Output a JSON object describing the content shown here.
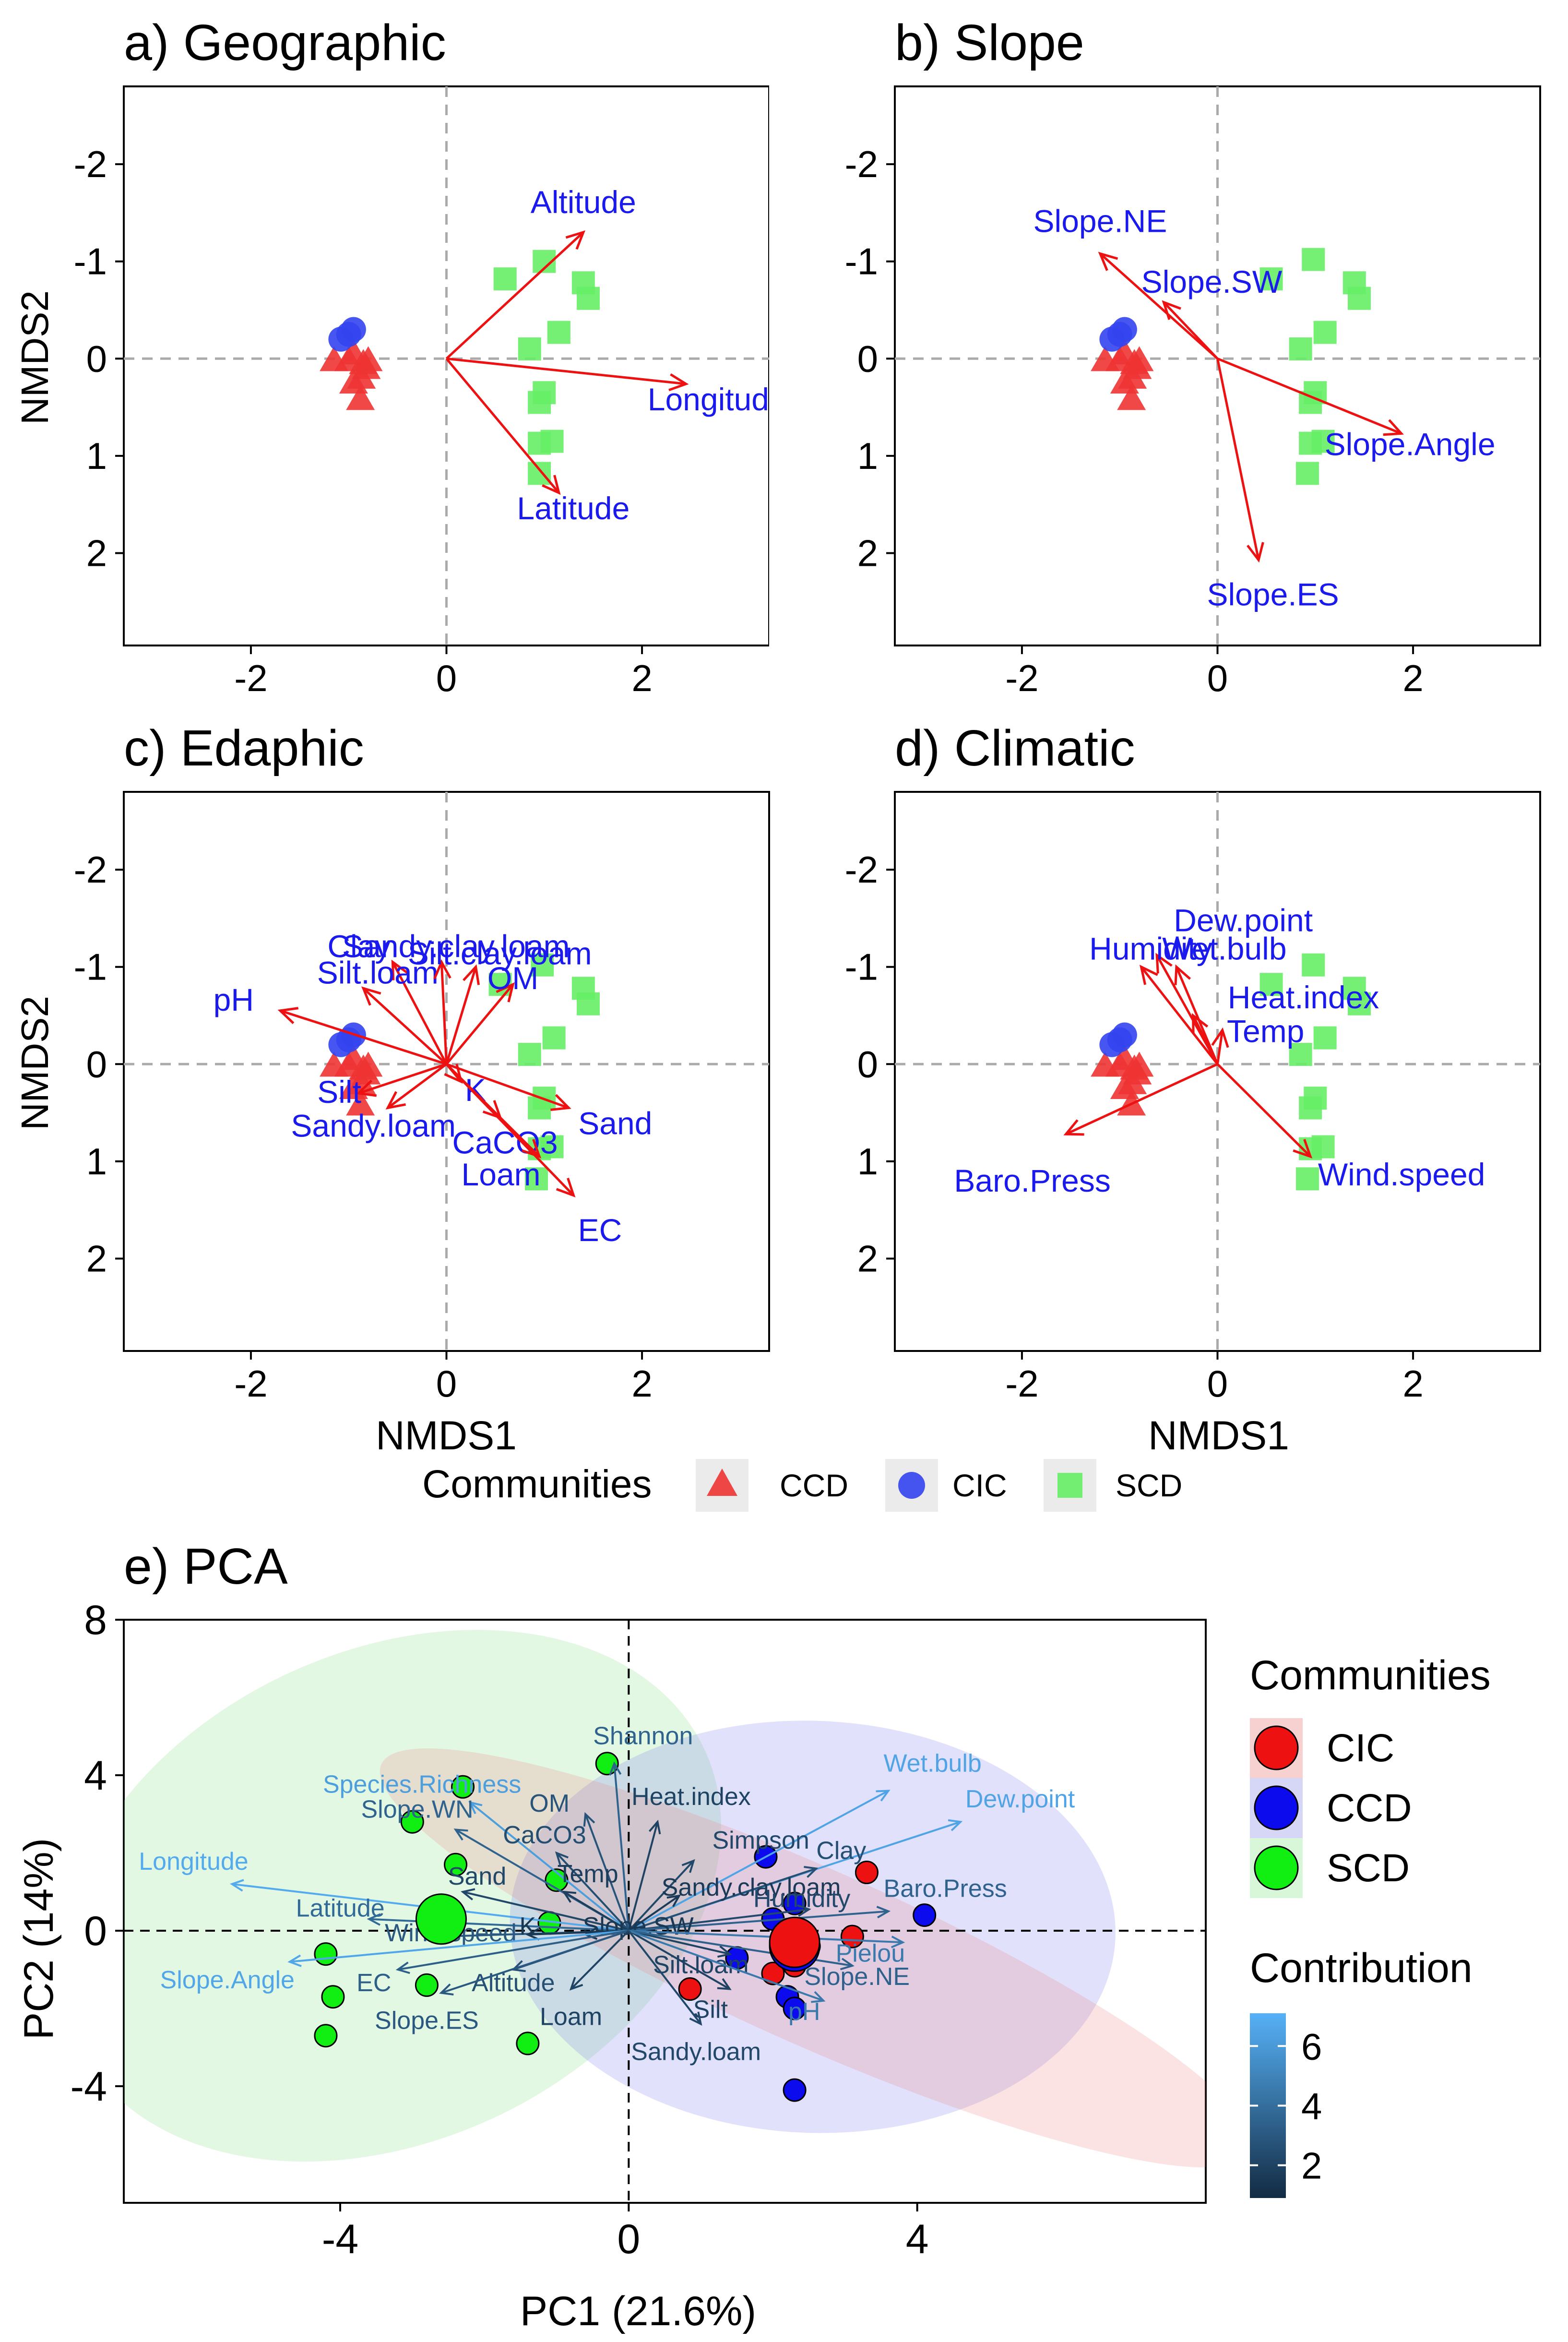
{
  "chart_data": [
    {
      "type": "scatter",
      "id": "a",
      "title": "a) Geographic",
      "xlabel": "",
      "ylabel": "NMDS2",
      "xlim": [
        -3.3,
        3.3
      ],
      "ylim": [
        -2.8,
        2.95
      ],
      "x_ticks": [
        -2,
        0,
        2
      ],
      "x_tick_labels": [
        "-2",
        "0",
        "2"
      ],
      "y_ticks": [
        -2,
        -1,
        0,
        1,
        2
      ],
      "y_tick_labels": [
        "-2",
        "-1",
        "0",
        "1",
        "2"
      ],
      "y_inverted": true,
      "points": {
        "CCD": [
          [
            -1.15,
            0.02
          ],
          [
            -1.0,
            0.02
          ],
          [
            -0.85,
            0.05
          ],
          [
            -0.8,
            0.02
          ],
          [
            -0.95,
            -0.05
          ],
          [
            -0.82,
            0.1
          ],
          [
            -0.87,
            0.2
          ],
          [
            -0.95,
            0.25
          ],
          [
            -0.88,
            0.42
          ]
        ],
        "CIC": [
          [
            -1.0,
            -0.25
          ],
          [
            -0.95,
            -0.3
          ],
          [
            -1.08,
            -0.2
          ]
        ],
        "SCD": [
          [
            0.6,
            -0.82
          ],
          [
            1.0,
            -1.0
          ],
          [
            1.4,
            -0.78
          ],
          [
            1.45,
            -0.62
          ],
          [
            1.15,
            -0.27
          ],
          [
            0.85,
            -0.1
          ],
          [
            1.0,
            0.35
          ],
          [
            0.95,
            0.45
          ],
          [
            0.95,
            0.87
          ],
          [
            1.08,
            0.85
          ],
          [
            0.95,
            1.18
          ]
        ]
      },
      "vectors": [
        {
          "label": "Altitude",
          "x": 1.4,
          "y": -1.3
        },
        {
          "label": "Longitude",
          "x": 2.45,
          "y": 0.26
        },
        {
          "label": "Latitude",
          "x": 1.15,
          "y": 1.38
        }
      ]
    },
    {
      "type": "scatter",
      "id": "b",
      "title": "b) Slope",
      "xlabel": "",
      "ylabel": "",
      "xlim": [
        -3.3,
        3.3
      ],
      "ylim": [
        -2.8,
        2.95
      ],
      "x_ticks": [
        -2,
        0,
        2
      ],
      "x_tick_labels": [
        "-2",
        "0",
        "2"
      ],
      "y_ticks": [
        -2,
        -1,
        0,
        1,
        2
      ],
      "y_tick_labels": [
        "-2",
        "-1",
        "0",
        "1",
        "2"
      ],
      "y_inverted": true,
      "points": {
        "CCD": [
          [
            -1.15,
            0.02
          ],
          [
            -1.0,
            0.02
          ],
          [
            -0.85,
            0.05
          ],
          [
            -0.8,
            0.02
          ],
          [
            -0.95,
            -0.05
          ],
          [
            -0.82,
            0.1
          ],
          [
            -0.87,
            0.2
          ],
          [
            -0.95,
            0.25
          ],
          [
            -0.88,
            0.42
          ]
        ],
        "CIC": [
          [
            -1.0,
            -0.25
          ],
          [
            -0.95,
            -0.3
          ],
          [
            -1.08,
            -0.2
          ]
        ],
        "SCD": [
          [
            0.55,
            -0.82
          ],
          [
            0.98,
            -1.02
          ],
          [
            1.4,
            -0.78
          ],
          [
            1.45,
            -0.62
          ],
          [
            1.1,
            -0.27
          ],
          [
            0.85,
            -0.1
          ],
          [
            1.0,
            0.35
          ],
          [
            0.95,
            0.45
          ],
          [
            0.95,
            0.87
          ],
          [
            1.08,
            0.85
          ],
          [
            0.92,
            1.18
          ]
        ]
      },
      "vectors": [
        {
          "label": "Slope.NE",
          "x": -1.2,
          "y": -1.08
        },
        {
          "label": "Slope.SW",
          "x": -0.55,
          "y": -0.58
        },
        {
          "label": "Slope.Angle",
          "x": 1.88,
          "y": 0.77
        },
        {
          "label": "Slope.ES",
          "x": 0.42,
          "y": 2.07
        }
      ]
    },
    {
      "type": "scatter",
      "id": "c",
      "title": "c) Edaphic",
      "xlabel": "NMDS1",
      "ylabel": "NMDS2",
      "xlim": [
        -3.3,
        3.3
      ],
      "ylim": [
        -2.8,
        2.95
      ],
      "x_ticks": [
        -2,
        0,
        2
      ],
      "x_tick_labels": [
        "-2",
        "0",
        "2"
      ],
      "y_ticks": [
        -2,
        -1,
        0,
        1,
        2
      ],
      "y_tick_labels": [
        "-2",
        "-1",
        "0",
        "1",
        "2"
      ],
      "y_inverted": true,
      "points": {
        "CCD": [
          [
            -1.15,
            0.02
          ],
          [
            -1.0,
            0.02
          ],
          [
            -0.85,
            0.05
          ],
          [
            -0.8,
            0.02
          ],
          [
            -0.95,
            -0.05
          ],
          [
            -0.82,
            0.1
          ],
          [
            -0.87,
            0.2
          ],
          [
            -0.95,
            0.25
          ],
          [
            -0.88,
            0.42
          ]
        ],
        "CIC": [
          [
            -1.0,
            -0.25
          ],
          [
            -0.95,
            -0.3
          ],
          [
            -1.08,
            -0.2
          ]
        ],
        "SCD": [
          [
            0.55,
            -0.82
          ],
          [
            0.98,
            -1.02
          ],
          [
            1.4,
            -0.78
          ],
          [
            1.45,
            -0.62
          ],
          [
            1.1,
            -0.27
          ],
          [
            0.85,
            -0.1
          ],
          [
            1.0,
            0.35
          ],
          [
            0.95,
            0.45
          ],
          [
            0.95,
            0.87
          ],
          [
            1.08,
            0.85
          ],
          [
            0.92,
            1.18
          ]
        ]
      },
      "vectors": [
        {
          "label": "pH",
          "x": -1.7,
          "y": -0.55
        },
        {
          "label": "Clay",
          "x": -0.55,
          "y": -1.05
        },
        {
          "label": "Silt.loam",
          "x": -0.85,
          "y": -0.78
        },
        {
          "label": "Sandy.clay.loam",
          "x": -0.05,
          "y": -1.05
        },
        {
          "label": "Silt.clay.loam",
          "x": 0.3,
          "y": -1.0
        },
        {
          "label": "OM",
          "x": 0.68,
          "y": -0.82
        },
        {
          "label": "Silt",
          "x": -0.9,
          "y": 0.3
        },
        {
          "label": "Sandy.loam",
          "x": -0.6,
          "y": 0.45
        },
        {
          "label": "K",
          "x": 0.15,
          "y": 0.18
        },
        {
          "label": "CaCO3",
          "x": 0.55,
          "y": 0.55
        },
        {
          "label": "Sand",
          "x": 1.25,
          "y": 0.45
        },
        {
          "label": "Loam",
          "x": 0.95,
          "y": 0.95
        },
        {
          "label": "EC",
          "x": 1.3,
          "y": 1.35
        }
      ]
    },
    {
      "type": "scatter",
      "id": "d",
      "title": "d) Climatic",
      "xlabel": "NMDS1",
      "ylabel": "",
      "xlim": [
        -3.3,
        3.3
      ],
      "ylim": [
        -2.8,
        2.95
      ],
      "x_ticks": [
        -2,
        0,
        2
      ],
      "x_tick_labels": [
        "-2",
        "0",
        "2"
      ],
      "y_ticks": [
        -2,
        -1,
        0,
        1,
        2
      ],
      "y_tick_labels": [
        "-2",
        "-1",
        "0",
        "1",
        "2"
      ],
      "y_inverted": true,
      "points": {
        "CCD": [
          [
            -1.15,
            0.02
          ],
          [
            -1.0,
            0.02
          ],
          [
            -0.85,
            0.05
          ],
          [
            -0.8,
            0.02
          ],
          [
            -0.95,
            -0.05
          ],
          [
            -0.82,
            0.1
          ],
          [
            -0.87,
            0.2
          ],
          [
            -0.95,
            0.25
          ],
          [
            -0.88,
            0.42
          ]
        ],
        "CIC": [
          [
            -1.0,
            -0.25
          ],
          [
            -0.95,
            -0.3
          ],
          [
            -1.08,
            -0.2
          ]
        ],
        "SCD": [
          [
            0.55,
            -0.82
          ],
          [
            0.98,
            -1.02
          ],
          [
            1.4,
            -0.78
          ],
          [
            1.45,
            -0.62
          ],
          [
            1.1,
            -0.27
          ],
          [
            0.85,
            -0.1
          ],
          [
            1.0,
            0.35
          ],
          [
            0.95,
            0.45
          ],
          [
            0.95,
            0.87
          ],
          [
            1.08,
            0.85
          ],
          [
            0.92,
            1.18
          ]
        ]
      },
      "vectors": [
        {
          "label": "Dew.point",
          "x": -0.62,
          "y": -1.12
        },
        {
          "label": "Humidity",
          "x": -0.78,
          "y": -1.0
        },
        {
          "label": "Wet.bulb",
          "x": -0.42,
          "y": -1.0
        },
        {
          "label": "Heat.index",
          "x": -0.25,
          "y": -0.5
        },
        {
          "label": "Temp",
          "x": 0.05,
          "y": -0.35
        },
        {
          "label": "Baro.Press",
          "x": -1.55,
          "y": 0.72
        },
        {
          "label": "Wind.speed",
          "x": 0.95,
          "y": 0.95
        }
      ]
    },
    {
      "type": "scatter",
      "id": "e",
      "title": "e) PCA",
      "xlabel": "PC1 (21.6%)",
      "ylabel": "PC2 (14%)",
      "xlim": [
        -7.0,
        8.0
      ],
      "ylim": [
        -7.0,
        8.0
      ],
      "x_ticks": [
        -4,
        0,
        4
      ],
      "x_tick_labels": [
        "-4",
        "0",
        "4"
      ],
      "y_ticks": [
        -4,
        0,
        4,
        8
      ],
      "y_tick_labels": [
        "-4",
        "0",
        "4",
        "8"
      ],
      "points": {
        "CIC": [
          [
            3.3,
            1.5
          ],
          [
            3.1,
            -0.15
          ],
          [
            2.3,
            -0.9
          ],
          [
            2.5,
            -0.4
          ],
          [
            0.85,
            -1.5
          ],
          [
            2.0,
            -1.1
          ]
        ],
        "CCD": [
          [
            4.1,
            0.4
          ],
          [
            2.3,
            0.7
          ],
          [
            1.9,
            1.9
          ],
          [
            2.2,
            -1.7
          ],
          [
            2.3,
            -2.0
          ],
          [
            2.3,
            -4.1
          ],
          [
            2.0,
            0.3
          ],
          [
            1.5,
            -0.7
          ]
        ],
        "SCD": [
          [
            -0.3,
            4.3
          ],
          [
            -2.3,
            3.7
          ],
          [
            -3.0,
            2.8
          ],
          [
            -2.4,
            1.7
          ],
          [
            -1.0,
            1.3
          ],
          [
            -1.1,
            0.2
          ],
          [
            -4.2,
            -0.6
          ],
          [
            -4.1,
            -1.7
          ],
          [
            -4.2,
            -2.7
          ],
          [
            -2.8,
            -1.4
          ],
          [
            -1.4,
            -2.9
          ]
        ]
      },
      "centroids": {
        "CIC": [
          2.3,
          -0.3
        ],
        "CCD": [
          2.3,
          -0.4
        ],
        "SCD": [
          -2.6,
          0.3
        ]
      },
      "ellipses": [
        {
          "group": "SCD",
          "cx": -3.3,
          "cy": 0.9,
          "rx": 4.8,
          "ry": 6.3,
          "angle": 25
        },
        {
          "group": "CCD",
          "cx": 2.55,
          "cy": 0.1,
          "rx": 4.2,
          "ry": 5.3,
          "angle": -2
        },
        {
          "group": "CIC",
          "cx": 2.6,
          "cy": -0.7,
          "rx": 6.6,
          "ry": 2.25,
          "angle": -24
        }
      ],
      "loadings": [
        {
          "label": "Species.Richness",
          "x": -2.2,
          "y": 3.3,
          "contrib": 6.2
        },
        {
          "label": "Shannon",
          "x": -0.2,
          "y": 4.3,
          "contrib": 3.5
        },
        {
          "label": "OM",
          "x": -0.6,
          "y": 3.0,
          "contrib": 2.8
        },
        {
          "label": "Slope.WN",
          "x": -2.4,
          "y": 2.6,
          "contrib": 3.5
        },
        {
          "label": "CaCO3",
          "x": -1.0,
          "y": 2.0,
          "contrib": 2.5
        },
        {
          "label": "Heat.index",
          "x": 0.4,
          "y": 2.8,
          "contrib": 2.0
        },
        {
          "label": "Wet.bulb",
          "x": 3.6,
          "y": 3.6,
          "contrib": 6.5
        },
        {
          "label": "Dew.point",
          "x": 4.6,
          "y": 2.8,
          "contrib": 6.5
        },
        {
          "label": "Simpson",
          "x": 0.9,
          "y": 1.8,
          "contrib": 2.2
        },
        {
          "label": "Clay",
          "x": 2.6,
          "y": 1.6,
          "contrib": 2.6
        },
        {
          "label": "Longitude",
          "x": -5.5,
          "y": 1.2,
          "contrib": 6.8
        },
        {
          "label": "Sand",
          "x": -2.3,
          "y": 1.0,
          "contrib": 2.2
        },
        {
          "label": "Temp",
          "x": -0.9,
          "y": 1.0,
          "contrib": 1.8
        },
        {
          "label": "Sandy.clay.loam",
          "x": 0.7,
          "y": 0.9,
          "contrib": 1.6
        },
        {
          "label": "Humidity",
          "x": 2.5,
          "y": 0.55,
          "contrib": 2.3
        },
        {
          "label": "Baro.Press",
          "x": 3.6,
          "y": 0.5,
          "contrib": 3.5
        },
        {
          "label": "Latitude",
          "x": -3.6,
          "y": 0.3,
          "contrib": 3.8
        },
        {
          "label": "Wind.speed",
          "x": -2.6,
          "y": -0.15,
          "contrib": 3.0
        },
        {
          "label": "K",
          "x": -1.4,
          "y": -0.1,
          "contrib": 1.5
        },
        {
          "label": "Slope.SW",
          "x": -0.6,
          "y": -0.1,
          "contrib": 1.5
        },
        {
          "label": "Pielou",
          "x": 3.8,
          "y": -0.3,
          "contrib": 4.5
        },
        {
          "label": "Slope.Angle",
          "x": -4.7,
          "y": -0.8,
          "contrib": 6.6
        },
        {
          "label": "EC",
          "x": -3.2,
          "y": -1.0,
          "contrib": 3.3
        },
        {
          "label": "Altitude",
          "x": -1.6,
          "y": -1.0,
          "contrib": 2.6
        },
        {
          "label": "Silt.loam",
          "x": 1.4,
          "y": -0.6,
          "contrib": 2.0
        },
        {
          "label": "Slope.NE",
          "x": 3.1,
          "y": -0.9,
          "contrib": 3.4
        },
        {
          "label": "Slope.ES",
          "x": -2.6,
          "y": -1.6,
          "contrib": 3.0
        },
        {
          "label": "Loam",
          "x": -0.8,
          "y": -1.5,
          "contrib": 2.0
        },
        {
          "label": "Silt",
          "x": 1.4,
          "y": -1.5,
          "contrib": 2.0
        },
        {
          "label": "pH",
          "x": 2.7,
          "y": -1.8,
          "contrib": 4.5
        },
        {
          "label": "Sandy.loam",
          "x": 1.0,
          "y": -2.4,
          "contrib": 2.2
        }
      ]
    }
  ],
  "legend_top": {
    "title": "Communities",
    "items": [
      {
        "label": "CCD",
        "shape": "triangle",
        "color": "#ee2222"
      },
      {
        "label": "CIC",
        "shape": "circle",
        "color": "#2233ee"
      },
      {
        "label": "SCD",
        "shape": "square",
        "color": "#44dd44"
      }
    ]
  },
  "legend_pca": {
    "title": "Communities",
    "items": [
      {
        "label": "CIC",
        "color": "#ee1111"
      },
      {
        "label": "CCD",
        "color": "#0b0bee"
      },
      {
        "label": "SCD",
        "color": "#11ee11"
      }
    ],
    "contribution_title": "Contribution",
    "contribution_ticks": [
      2,
      4,
      6
    ],
    "contribution_tick_labels": [
      "2",
      "4",
      "6"
    ],
    "contribution_range": [
      0.9,
      7.1
    ]
  },
  "colors": {
    "CCD": "#ee3333",
    "CIC": "#3344ee",
    "SCD": "#66ee66",
    "vector": "#ee1111",
    "vector_label": "#1a1aee",
    "pca_CIC": "#ee1111",
    "pca_CCD": "#0b0bee",
    "pca_SCD": "#11ee11",
    "grad_low": "#132b43",
    "grad_high": "#56b1f7"
  }
}
